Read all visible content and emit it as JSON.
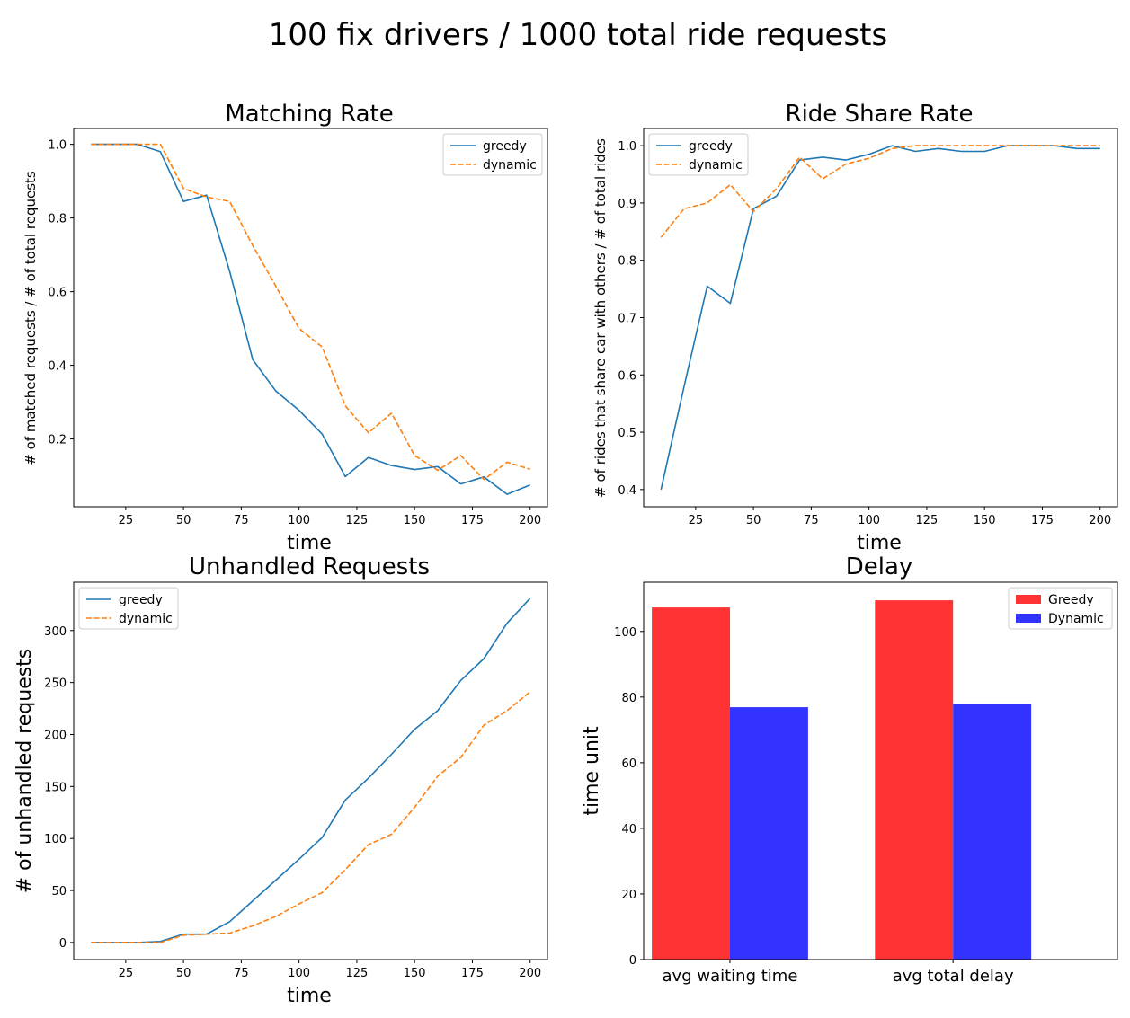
{
  "figure": {
    "suptitle": "100 fix drivers / 1000 total ride requests"
  },
  "chart_data": [
    {
      "type": "line",
      "title": "Matching Rate",
      "xlabel": "time",
      "ylabel": "# of matched requests / # of total requests",
      "xlim": [
        2.5,
        207.5
      ],
      "ylim": [
        0.016,
        1.043
      ],
      "xticks": [
        25,
        50,
        75,
        100,
        125,
        150,
        175,
        200
      ],
      "yticks": [
        0.2,
        0.4,
        0.6,
        0.8,
        1.0
      ],
      "yticklabels": [
        "0.2",
        "0.4",
        "0.6",
        "0.8",
        "1.0"
      ],
      "legend_loc": "upper right",
      "x": [
        10,
        20,
        30,
        40,
        50,
        60,
        70,
        80,
        90,
        100,
        110,
        120,
        130,
        140,
        150,
        160,
        170,
        180,
        190,
        200
      ],
      "series": [
        {
          "name": "greedy",
          "color": "#1f77b4",
          "dash": "solid",
          "values": [
            1.0,
            1.0,
            1.0,
            0.98,
            0.845,
            0.862,
            0.655,
            0.415,
            0.33,
            0.278,
            0.213,
            0.098,
            0.15,
            0.128,
            0.117,
            0.125,
            0.078,
            0.097,
            0.05,
            0.075
          ]
        },
        {
          "name": "dynamic",
          "color": "#ff7f0e",
          "dash": "dashed",
          "values": [
            1.0,
            1.0,
            1.0,
            1.0,
            0.88,
            0.857,
            0.845,
            0.725,
            0.615,
            0.5,
            0.45,
            0.29,
            0.217,
            0.27,
            0.155,
            0.115,
            0.155,
            0.09,
            0.137,
            0.118
          ]
        }
      ]
    },
    {
      "type": "line",
      "title": "Ride Share Rate",
      "xlabel": "time",
      "ylabel": "# of rides that share car with others / # of total rides",
      "xlim": [
        2.5,
        207.5
      ],
      "ylim": [
        0.37,
        1.03
      ],
      "xticks": [
        25,
        50,
        75,
        100,
        125,
        150,
        175,
        200
      ],
      "yticks": [
        0.4,
        0.5,
        0.6,
        0.7,
        0.8,
        0.9,
        1.0
      ],
      "yticklabels": [
        "0.4",
        "0.5",
        "0.6",
        "0.7",
        "0.8",
        "0.9",
        "1.0"
      ],
      "legend_loc": "upper left",
      "x": [
        10,
        20,
        30,
        40,
        50,
        60,
        70,
        80,
        90,
        100,
        110,
        120,
        130,
        140,
        150,
        160,
        170,
        180,
        190,
        200
      ],
      "series": [
        {
          "name": "greedy",
          "color": "#1f77b4",
          "dash": "solid",
          "values": [
            0.4,
            0.58,
            0.755,
            0.725,
            0.89,
            0.912,
            0.975,
            0.98,
            0.975,
            0.985,
            1.0,
            0.99,
            0.995,
            0.99,
            0.99,
            1.0,
            1.0,
            1.0,
            0.995,
            0.995
          ]
        },
        {
          "name": "dynamic",
          "color": "#ff7f0e",
          "dash": "dashed",
          "values": [
            0.84,
            0.89,
            0.9,
            0.932,
            0.885,
            0.925,
            0.98,
            0.942,
            0.968,
            0.978,
            0.995,
            1.0,
            1.0,
            1.0,
            1.0,
            1.0,
            1.0,
            1.0,
            1.0,
            1.0
          ]
        }
      ]
    },
    {
      "type": "line",
      "title": "Unhandled Requests",
      "xlabel": "time",
      "ylabel": "# of unhandled requests",
      "xlim": [
        2.5,
        207.5
      ],
      "ylim": [
        -16.5,
        346.5
      ],
      "xticks": [
        25,
        50,
        75,
        100,
        125,
        150,
        175,
        200
      ],
      "yticks": [
        0,
        50,
        100,
        150,
        200,
        250,
        300
      ],
      "yticklabels": [
        "0",
        "50",
        "100",
        "150",
        "200",
        "250",
        "300"
      ],
      "legend_loc": "upper left",
      "x": [
        10,
        20,
        30,
        40,
        50,
        60,
        70,
        80,
        90,
        100,
        110,
        120,
        130,
        140,
        150,
        160,
        170,
        180,
        190,
        200
      ],
      "series": [
        {
          "name": "greedy",
          "color": "#1f77b4",
          "dash": "solid",
          "values": [
            0,
            0,
            0,
            1,
            8,
            8,
            20,
            40,
            60,
            80,
            101,
            137,
            158,
            181,
            205,
            223,
            252,
            273,
            307,
            331
          ]
        },
        {
          "name": "dynamic",
          "color": "#ff7f0e",
          "dash": "dashed",
          "values": [
            0,
            0,
            0,
            0,
            7,
            8,
            9,
            16,
            25,
            37,
            48,
            70,
            94,
            104,
            130,
            160,
            178,
            209,
            223,
            241
          ]
        }
      ]
    },
    {
      "type": "bar",
      "title": "Delay",
      "xlabel": "",
      "ylabel": "time unit",
      "ylim": [
        0,
        115
      ],
      "yticks": [
        0,
        20,
        40,
        60,
        80,
        100
      ],
      "yticklabels": [
        "0",
        "20",
        "40",
        "60",
        "80",
        "100"
      ],
      "legend_loc": "upper right",
      "categories": [
        "avg waiting time",
        "avg total delay"
      ],
      "series": [
        {
          "name": "Greedy",
          "color": "#ff3333",
          "values": [
            107.3,
            109.5
          ]
        },
        {
          "name": "Dynamic",
          "color": "#3333ff",
          "values": [
            76.9,
            77.8
          ]
        }
      ]
    }
  ]
}
